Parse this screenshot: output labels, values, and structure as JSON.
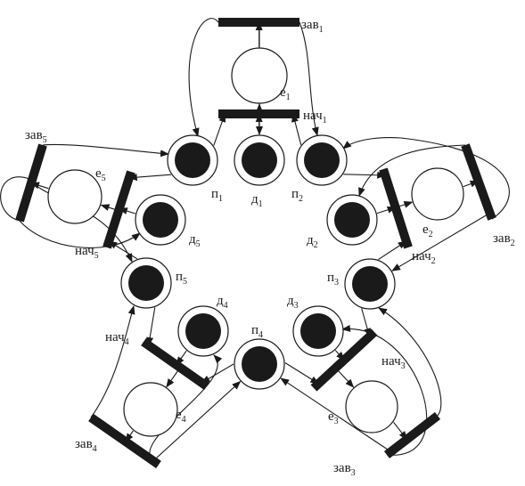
{
  "colors": {
    "ink": "#1a1a1a",
    "background": "#ffffff"
  },
  "diagram": {
    "kind": "petri-net",
    "places": [
      {
        "id": "e1",
        "base": "е",
        "sub": "1",
        "tokens": 0
      },
      {
        "id": "e2",
        "base": "е",
        "sub": "2",
        "tokens": 0
      },
      {
        "id": "e3",
        "base": "е",
        "sub": "3",
        "tokens": 0
      },
      {
        "id": "e4",
        "base": "е",
        "sub": "4",
        "tokens": 0
      },
      {
        "id": "e5",
        "base": "е",
        "sub": "5",
        "tokens": 0
      },
      {
        "id": "p1",
        "base": "п",
        "sub": "1",
        "tokens": 1
      },
      {
        "id": "p2",
        "base": "п",
        "sub": "2",
        "tokens": 1
      },
      {
        "id": "p3",
        "base": "п",
        "sub": "3",
        "tokens": 1
      },
      {
        "id": "p4",
        "base": "п",
        "sub": "4",
        "tokens": 1
      },
      {
        "id": "p5",
        "base": "п",
        "sub": "5",
        "tokens": 1
      },
      {
        "id": "d1",
        "base": "д",
        "sub": "1",
        "tokens": 1
      },
      {
        "id": "d2",
        "base": "д",
        "sub": "2",
        "tokens": 1
      },
      {
        "id": "d3",
        "base": "д",
        "sub": "3",
        "tokens": 1
      },
      {
        "id": "d4",
        "base": "д",
        "sub": "4",
        "tokens": 1
      },
      {
        "id": "d5",
        "base": "д",
        "sub": "5",
        "tokens": 1
      }
    ],
    "transitions": [
      {
        "id": "zav1",
        "base": "зав",
        "sub": "1"
      },
      {
        "id": "nach1",
        "base": "нач",
        "sub": "1"
      },
      {
        "id": "zav2",
        "base": "зав",
        "sub": "2"
      },
      {
        "id": "nach2",
        "base": "нач",
        "sub": "2"
      },
      {
        "id": "zav3",
        "base": "зав",
        "sub": "3"
      },
      {
        "id": "nach3",
        "base": "нач",
        "sub": "3"
      },
      {
        "id": "zav4",
        "base": "зав",
        "sub": "4"
      },
      {
        "id": "nach4",
        "base": "нач",
        "sub": "4"
      },
      {
        "id": "zav5",
        "base": "зав",
        "sub": "5"
      },
      {
        "id": "nach5",
        "base": "нач",
        "sub": "5"
      }
    ],
    "arcs": [
      {
        "from": "nach1",
        "to": "e1"
      },
      {
        "from": "e1",
        "to": "zav1"
      },
      {
        "from": "p1",
        "to": "nach1"
      },
      {
        "from": "d1",
        "to": "nach1"
      },
      {
        "from": "p2",
        "to": "nach1"
      },
      {
        "from": "zav1",
        "to": "p1"
      },
      {
        "from": "zav1",
        "to": "d1"
      },
      {
        "from": "zav1",
        "to": "p2"
      },
      {
        "from": "nach2",
        "to": "e2"
      },
      {
        "from": "e2",
        "to": "zav2"
      },
      {
        "from": "p2",
        "to": "nach2"
      },
      {
        "from": "d2",
        "to": "nach2"
      },
      {
        "from": "p3",
        "to": "nach2"
      },
      {
        "from": "zav2",
        "to": "p2"
      },
      {
        "from": "zav2",
        "to": "d2"
      },
      {
        "from": "zav2",
        "to": "p3"
      },
      {
        "from": "nach3",
        "to": "e3"
      },
      {
        "from": "e3",
        "to": "zav3"
      },
      {
        "from": "p3",
        "to": "nach3"
      },
      {
        "from": "d3",
        "to": "nach3"
      },
      {
        "from": "p4",
        "to": "nach3"
      },
      {
        "from": "zav3",
        "to": "p3"
      },
      {
        "from": "zav3",
        "to": "d3"
      },
      {
        "from": "zav3",
        "to": "p4"
      },
      {
        "from": "nach4",
        "to": "e4"
      },
      {
        "from": "e4",
        "to": "zav4"
      },
      {
        "from": "p4",
        "to": "nach4"
      },
      {
        "from": "d4",
        "to": "nach4"
      },
      {
        "from": "p5",
        "to": "nach4"
      },
      {
        "from": "zav4",
        "to": "p4"
      },
      {
        "from": "zav4",
        "to": "d4"
      },
      {
        "from": "zav4",
        "to": "p5"
      },
      {
        "from": "nach5",
        "to": "e5"
      },
      {
        "from": "e5",
        "to": "zav5"
      },
      {
        "from": "p5",
        "to": "nach5"
      },
      {
        "from": "d5",
        "to": "nach5"
      },
      {
        "from": "p1",
        "to": "nach5"
      },
      {
        "from": "zav5",
        "to": "p5"
      },
      {
        "from": "zav5",
        "to": "d5"
      },
      {
        "from": "zav5",
        "to": "p1"
      }
    ]
  }
}
